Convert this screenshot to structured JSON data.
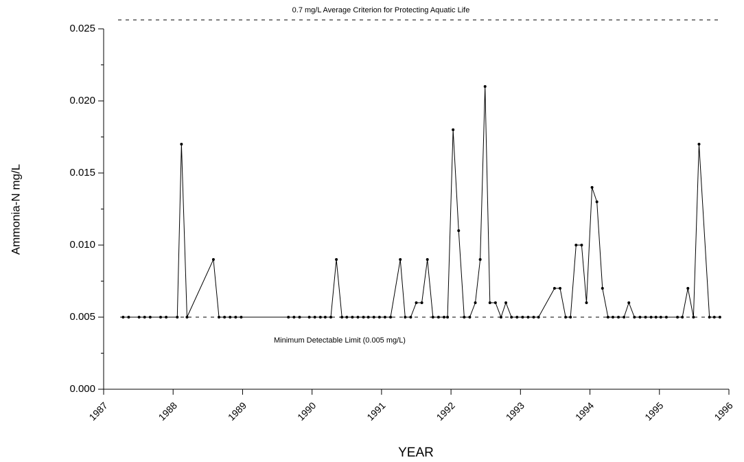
{
  "chart_data": {
    "type": "line",
    "y_label": "Ammonia-N mg/L",
    "x_label": "YEAR",
    "top_reference": "0.7 mg/L  Average Criterion for Protecting Aquatic Life",
    "reference_lines": [
      {
        "value": 0.005,
        "label": "Minimum Detectable Limit (0.005 mg/L)"
      }
    ],
    "xlim": [
      1987,
      1996
    ],
    "xticks": [
      1987,
      1988,
      1989,
      1990,
      1991,
      1992,
      1993,
      1994,
      1995,
      1996
    ],
    "ylim": [
      0,
      0.025
    ],
    "yticks": [
      {
        "value": 0,
        "label": "0.000"
      },
      {
        "value": 0.005,
        "label": "0.005"
      },
      {
        "value": 0.01,
        "label": "0.010"
      },
      {
        "value": 0.015,
        "label": "0.015"
      },
      {
        "value": 0.02,
        "label": "0.020"
      },
      {
        "value": 0.025,
        "label": "0.025"
      }
    ],
    "series": [
      {
        "color": "#000000",
        "x": [
          1987.28,
          1987.36,
          1987.51,
          1987.59,
          1987.67,
          1987.82,
          1987.9,
          1988.06,
          1988.12,
          1988.2,
          1988.58,
          1988.66,
          1988.74,
          1988.82,
          1988.9,
          1988.98,
          1989.66,
          1989.74,
          1989.82,
          1989.96,
          1990.04,
          1990.12,
          1990.19,
          1990.27,
          1990.35,
          1990.43,
          1990.5,
          1990.58,
          1990.66,
          1990.74,
          1990.81,
          1990.89,
          1990.97,
          1991.05,
          1991.13,
          1991.27,
          1991.34,
          1991.42,
          1991.5,
          1991.58,
          1991.66,
          1991.74,
          1991.82,
          1991.9,
          1991.95,
          1992.03,
          1992.11,
          1992.19,
          1992.27,
          1992.35,
          1992.42,
          1992.49,
          1992.56,
          1992.64,
          1992.72,
          1992.79,
          1992.87,
          1992.95,
          1993.03,
          1993.11,
          1993.19,
          1993.26,
          1993.49,
          1993.57,
          1993.65,
          1993.72,
          1993.8,
          1993.88,
          1993.95,
          1994.03,
          1994.1,
          1994.18,
          1994.26,
          1994.33,
          1994.41,
          1994.49,
          1994.56,
          1994.64,
          1994.72,
          1994.8,
          1994.88,
          1994.95,
          1995.02,
          1995.1,
          1995.26,
          1995.33,
          1995.41,
          1995.49,
          1995.57,
          1995.72,
          1995.79,
          1995.87
        ],
        "values": [
          0.005,
          0.005,
          0.005,
          0.005,
          0.005,
          0.005,
          0.005,
          0.005,
          0.017,
          0.005,
          0.009,
          0.005,
          0.005,
          0.005,
          0.005,
          0.005,
          0.005,
          0.005,
          0.005,
          0.005,
          0.005,
          0.005,
          0.005,
          0.005,
          0.009,
          0.005,
          0.005,
          0.005,
          0.005,
          0.005,
          0.005,
          0.005,
          0.005,
          0.005,
          0.005,
          0.009,
          0.005,
          0.005,
          0.006,
          0.006,
          0.009,
          0.005,
          0.005,
          0.005,
          0.005,
          0.018,
          0.011,
          0.005,
          0.005,
          0.006,
          0.009,
          0.021,
          0.006,
          0.006,
          0.005,
          0.006,
          0.005,
          0.005,
          0.005,
          0.005,
          0.005,
          0.005,
          0.007,
          0.007,
          0.005,
          0.005,
          0.01,
          0.01,
          0.006,
          0.014,
          0.013,
          0.007,
          0.005,
          0.005,
          0.005,
          0.005,
          0.006,
          0.005,
          0.005,
          0.005,
          0.005,
          0.005,
          0.005,
          0.005,
          0.005,
          0.005,
          0.007,
          0.005,
          0.017,
          0.005,
          0.005,
          0.005
        ]
      }
    ]
  }
}
